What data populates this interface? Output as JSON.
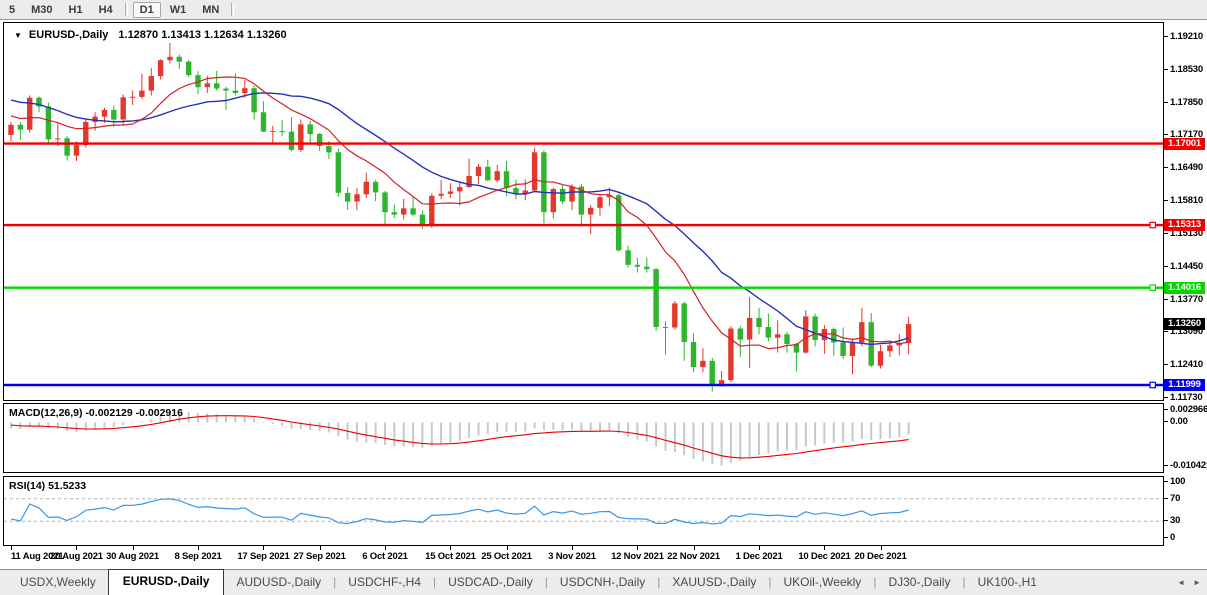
{
  "toolbar": {
    "timeframes": [
      "5",
      "M30",
      "H1",
      "H4",
      "D1",
      "W1",
      "MN"
    ],
    "active": "D1"
  },
  "chart_header": {
    "collapse_icon": "▼",
    "symbol": "EURUSD-,Daily",
    "ohlc": "1.12870 1.13413 1.12634 1.13260"
  },
  "y_axis": {
    "ticks": [
      "1.19210",
      "1.18530",
      "1.17850",
      "1.17170",
      "1.16490",
      "1.15810",
      "1.15130",
      "1.14450",
      "1.13770",
      "1.13090",
      "1.12410",
      "1.11730"
    ]
  },
  "hlines": [
    {
      "price": 1.17001,
      "label": "1.17001",
      "color": "#f00000",
      "handle": false
    },
    {
      "price": 1.15313,
      "label": "1.15313",
      "color": "#f00000",
      "handle": true
    },
    {
      "price": 1.14016,
      "label": "1.14016",
      "color": "#00d800",
      "handle": true
    },
    {
      "price": 1.11999,
      "label": "1.11999",
      "color": "#0000f0",
      "handle": true
    }
  ],
  "current_price": {
    "label": "1.13260",
    "value": 1.1326,
    "bg": "#000000"
  },
  "indicators": {
    "macd": {
      "label": "MACD(12,26,9) -0.002129 -0.002916",
      "scale": [
        {
          "label": "0.002966",
          "value": 0.002966
        },
        {
          "label": "0.00",
          "value": 0
        },
        {
          "label": "-0.010421",
          "value": -0.010421
        }
      ],
      "histogram_color": "#c8c8c8",
      "signal_color": "#e80000"
    },
    "rsi": {
      "label": "RSI(14) 51.5233",
      "levels": [
        {
          "label": "100",
          "value": 100
        },
        {
          "label": "70",
          "value": 70
        },
        {
          "label": "30",
          "value": 30
        },
        {
          "label": "0",
          "value": 0
        }
      ],
      "line_color": "#3a96e8",
      "level_line_color": "#b4b4b4"
    }
  },
  "x_axis": {
    "ticks": [
      {
        "label": "11 Aug 2021",
        "i": 0
      },
      {
        "label": "20 Aug 2021",
        "i": 7
      },
      {
        "label": "30 Aug 2021",
        "i": 13
      },
      {
        "label": "8 Sep 2021",
        "i": 20
      },
      {
        "label": "17 Sep 2021",
        "i": 27
      },
      {
        "label": "27 Sep 2021",
        "i": 33
      },
      {
        "label": "6 Oct 2021",
        "i": 40
      },
      {
        "label": "15 Oct 2021",
        "i": 47
      },
      {
        "label": "25 Oct 2021",
        "i": 53
      },
      {
        "label": "3 Nov 2021",
        "i": 60
      },
      {
        "label": "12 Nov 2021",
        "i": 67
      },
      {
        "label": "22 Nov 2021",
        "i": 73
      },
      {
        "label": "1 Dec 2021",
        "i": 80
      },
      {
        "label": "10 Dec 2021",
        "i": 87
      },
      {
        "label": "20 Dec 2021",
        "i": 93
      }
    ]
  },
  "chart_data": {
    "type": "candlestick",
    "symbol": "EURUSD-,Daily",
    "title": "EURUSD-,Daily 1.12870 1.13413 1.12634 1.13260",
    "up_color": "#e3382d",
    "down_color": "#2eb42e",
    "ma_fast": {
      "period": 10,
      "color": "#d22222"
    },
    "ma_slow": {
      "period": 20,
      "color": "#2433b4"
    },
    "ylim": [
      1.1169,
      1.195
    ],
    "pre_close": [
      1.177,
      1.1775,
      1.1782,
      1.179,
      1.18,
      1.1808,
      1.1815,
      1.1822,
      1.1828,
      1.1832,
      1.1836,
      1.1838,
      1.1832,
      1.1824,
      1.1815,
      1.1805,
      1.1796,
      1.1788,
      1.178,
      1.1772,
      1.1765,
      1.1758,
      1.1752,
      1.1746,
      1.1741,
      1.1737
    ],
    "candles": [
      [
        1.1718,
        1.1745,
        1.1705,
        1.1739
      ],
      [
        1.1739,
        1.1745,
        1.1708,
        1.1729
      ],
      [
        1.1729,
        1.18,
        1.1723,
        1.1795
      ],
      [
        1.1795,
        1.1798,
        1.1765,
        1.1777
      ],
      [
        1.1777,
        1.1785,
        1.1702,
        1.1709
      ],
      [
        1.1709,
        1.1742,
        1.1695,
        1.1711
      ],
      [
        1.1711,
        1.1715,
        1.1665,
        1.1675
      ],
      [
        1.1675,
        1.1705,
        1.1664,
        1.1697
      ],
      [
        1.1697,
        1.175,
        1.1692,
        1.1745
      ],
      [
        1.1745,
        1.1765,
        1.1727,
        1.1756
      ],
      [
        1.1756,
        1.1774,
        1.1743,
        1.177
      ],
      [
        1.177,
        1.1779,
        1.1735,
        1.175
      ],
      [
        1.175,
        1.1802,
        1.174,
        1.1796
      ],
      [
        1.1796,
        1.181,
        1.178,
        1.1797
      ],
      [
        1.1797,
        1.1845,
        1.1793,
        1.181
      ],
      [
        1.181,
        1.1857,
        1.18,
        1.184
      ],
      [
        1.184,
        1.1875,
        1.1833,
        1.1873
      ],
      [
        1.1873,
        1.1909,
        1.1866,
        1.188
      ],
      [
        1.188,
        1.1885,
        1.1855,
        1.187
      ],
      [
        1.187,
        1.1873,
        1.1838,
        1.1842
      ],
      [
        1.1842,
        1.185,
        1.1802,
        1.1817
      ],
      [
        1.1817,
        1.1841,
        1.1805,
        1.1825
      ],
      [
        1.1825,
        1.1851,
        1.181,
        1.1814
      ],
      [
        1.1814,
        1.1818,
        1.177,
        1.181
      ],
      [
        1.181,
        1.1846,
        1.18,
        1.1805
      ],
      [
        1.1805,
        1.1832,
        1.1795,
        1.1815
      ],
      [
        1.1815,
        1.182,
        1.175,
        1.1765
      ],
      [
        1.1765,
        1.1788,
        1.1724,
        1.1725
      ],
      [
        1.1725,
        1.1737,
        1.17,
        1.1726
      ],
      [
        1.1726,
        1.1749,
        1.1715,
        1.1725
      ],
      [
        1.1725,
        1.1755,
        1.1684,
        1.1687
      ],
      [
        1.1687,
        1.175,
        1.1683,
        1.174
      ],
      [
        1.174,
        1.1747,
        1.1701,
        1.172
      ],
      [
        1.172,
        1.1722,
        1.1685,
        1.1695
      ],
      [
        1.1695,
        1.1705,
        1.1668,
        1.1682
      ],
      [
        1.1682,
        1.169,
        1.159,
        1.1598
      ],
      [
        1.1598,
        1.161,
        1.1563,
        1.158
      ],
      [
        1.158,
        1.1608,
        1.1562,
        1.1595
      ],
      [
        1.1595,
        1.164,
        1.1587,
        1.1621
      ],
      [
        1.1621,
        1.1625,
        1.1581,
        1.1599
      ],
      [
        1.1599,
        1.1602,
        1.1529,
        1.1558
      ],
      [
        1.1558,
        1.1574,
        1.1546,
        1.1553
      ],
      [
        1.1553,
        1.1586,
        1.1543,
        1.1566
      ],
      [
        1.1566,
        1.159,
        1.1549,
        1.1553
      ],
      [
        1.1553,
        1.1561,
        1.1524,
        1.1531
      ],
      [
        1.1531,
        1.1597,
        1.1525,
        1.1592
      ],
      [
        1.1592,
        1.1624,
        1.1585,
        1.1596
      ],
      [
        1.1596,
        1.1618,
        1.1588,
        1.1601
      ],
      [
        1.1601,
        1.1622,
        1.1572,
        1.161
      ],
      [
        1.161,
        1.1669,
        1.1609,
        1.1633
      ],
      [
        1.1633,
        1.1658,
        1.1617,
        1.1652
      ],
      [
        1.1652,
        1.1667,
        1.1622,
        1.1624
      ],
      [
        1.1624,
        1.1656,
        1.162,
        1.1643
      ],
      [
        1.1643,
        1.1664,
        1.1591,
        1.1608
      ],
      [
        1.1608,
        1.1626,
        1.1585,
        1.1596
      ],
      [
        1.1596,
        1.1626,
        1.1583,
        1.1603
      ],
      [
        1.1603,
        1.1692,
        1.16,
        1.1682
      ],
      [
        1.1682,
        1.1686,
        1.1535,
        1.1558
      ],
      [
        1.1558,
        1.1609,
        1.1545,
        1.1606
      ],
      [
        1.1606,
        1.1614,
        1.1575,
        1.158
      ],
      [
        1.158,
        1.1616,
        1.1562,
        1.1611
      ],
      [
        1.1611,
        1.1616,
        1.1528,
        1.1553
      ],
      [
        1.1553,
        1.1573,
        1.1513,
        1.1567
      ],
      [
        1.1567,
        1.1595,
        1.1551,
        1.1589
      ],
      [
        1.1589,
        1.1609,
        1.157,
        1.1593
      ],
      [
        1.1593,
        1.1597,
        1.1476,
        1.1479
      ],
      [
        1.1479,
        1.1489,
        1.1443,
        1.1449
      ],
      [
        1.1449,
        1.1463,
        1.1433,
        1.1445
      ],
      [
        1.1445,
        1.1464,
        1.1433,
        1.144
      ],
      [
        1.144,
        1.1442,
        1.1312,
        1.132
      ],
      [
        1.132,
        1.1332,
        1.1263,
        1.1319
      ],
      [
        1.1319,
        1.1374,
        1.1314,
        1.1369
      ],
      [
        1.1369,
        1.1373,
        1.125,
        1.1289
      ],
      [
        1.1289,
        1.1307,
        1.1226,
        1.1237
      ],
      [
        1.1237,
        1.1276,
        1.1226,
        1.125
      ],
      [
        1.125,
        1.1256,
        1.1186,
        1.12
      ],
      [
        1.12,
        1.1229,
        1.1196,
        1.121
      ],
      [
        1.121,
        1.1322,
        1.1206,
        1.1317
      ],
      [
        1.1317,
        1.1323,
        1.1258,
        1.1294
      ],
      [
        1.1294,
        1.1382,
        1.1235,
        1.1339
      ],
      [
        1.1339,
        1.136,
        1.1305,
        1.132
      ],
      [
        1.132,
        1.1348,
        1.129,
        1.1298
      ],
      [
        1.1298,
        1.1334,
        1.1267,
        1.1305
      ],
      [
        1.1305,
        1.131,
        1.1267,
        1.1285
      ],
      [
        1.1285,
        1.1288,
        1.1228,
        1.1267
      ],
      [
        1.1267,
        1.1355,
        1.1265,
        1.1342
      ],
      [
        1.1342,
        1.1348,
        1.128,
        1.1293
      ],
      [
        1.1293,
        1.1324,
        1.1264,
        1.1316
      ],
      [
        1.1316,
        1.1319,
        1.126,
        1.1288
      ],
      [
        1.1288,
        1.1319,
        1.1254,
        1.126
      ],
      [
        1.126,
        1.1296,
        1.1222,
        1.1288
      ],
      [
        1.1288,
        1.136,
        1.128,
        1.133
      ],
      [
        1.133,
        1.1349,
        1.1237,
        1.124
      ],
      [
        1.124,
        1.1283,
        1.1234,
        1.127
      ],
      [
        1.127,
        1.1292,
        1.1258,
        1.1282
      ],
      [
        1.1282,
        1.1305,
        1.1261,
        1.1287
      ],
      [
        1.1287,
        1.13413,
        1.12634,
        1.1326
      ]
    ]
  },
  "tabs": {
    "items": [
      "USDX,Weekly",
      "EURUSD-,Daily",
      "AUDUSD-,Daily",
      "USDCHF-,H4",
      "USDCAD-,Daily",
      "USDCNH-,Daily",
      "XAUUSD-,Daily",
      "UKOil-,Weekly",
      "DJ30-,Daily",
      "UK100-,H1"
    ],
    "active_index": 1,
    "scroll_left_icon": "◄",
    "scroll_right_icon": "►"
  }
}
